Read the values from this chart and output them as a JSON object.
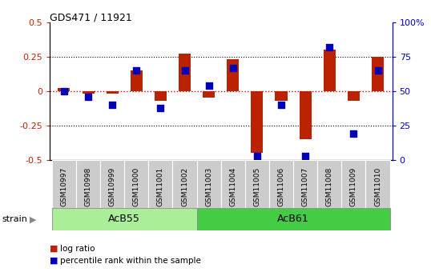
{
  "title": "GDS471 / 11921",
  "samples": [
    "GSM10997",
    "GSM10998",
    "GSM10999",
    "GSM11000",
    "GSM11001",
    "GSM11002",
    "GSM11003",
    "GSM11004",
    "GSM11005",
    "GSM11006",
    "GSM11007",
    "GSM11008",
    "GSM11009",
    "GSM11010"
  ],
  "log_ratio": [
    0.02,
    -0.02,
    -0.02,
    0.15,
    -0.07,
    0.27,
    -0.05,
    0.23,
    -0.45,
    -0.07,
    -0.35,
    0.3,
    -0.07,
    0.25
  ],
  "percentile_rank": [
    50,
    46,
    40,
    65,
    38,
    65,
    54,
    67,
    3,
    40,
    3,
    82,
    19,
    65
  ],
  "groups": [
    {
      "label": "AcB55",
      "start": 0,
      "end": 5,
      "color": "#aaee99"
    },
    {
      "label": "AcB61",
      "start": 6,
      "end": 13,
      "color": "#44cc44"
    }
  ],
  "strain_label": "strain",
  "ylim_left": [
    -0.5,
    0.5
  ],
  "ylim_right": [
    0,
    100
  ],
  "yticks_left": [
    -0.5,
    -0.25,
    0.0,
    0.25,
    0.5
  ],
  "yticks_right": [
    0,
    25,
    50,
    75,
    100
  ],
  "ytick_labels_right": [
    "0",
    "25",
    "50",
    "75",
    "100%"
  ],
  "bar_color": "#bb2200",
  "dot_color": "#0000bb",
  "dot_size": 35,
  "bar_width": 0.5,
  "legend_items": [
    "log ratio",
    "percentile rank within the sample"
  ],
  "legend_colors": [
    "#bb2200",
    "#0000bb"
  ],
  "background_color": "#ffffff",
  "tick_label_color_left": "#cc2200",
  "tick_label_color_right": "#0000cc",
  "xtick_box_color": "#cccccc"
}
